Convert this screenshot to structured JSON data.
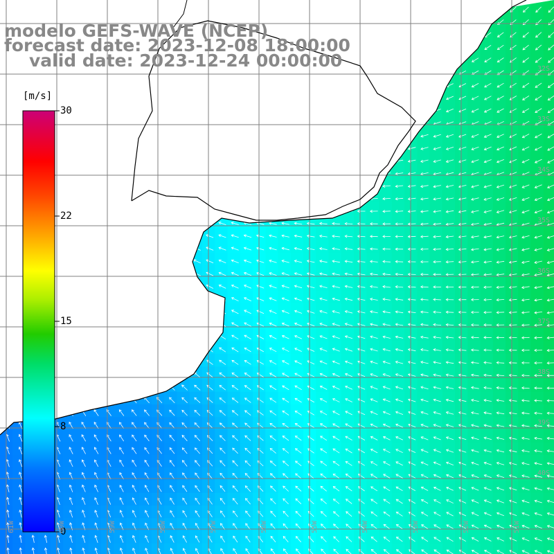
{
  "title": {
    "line1": "modelo GEFS-WAVE (NCEP)",
    "line2": "forecast date: 2023-12-08 18:00:00",
    "line3": "valid date: 2023-12-24 00:00:00"
  },
  "colorbar": {
    "unit": "[m/s]",
    "ticks": [
      "30",
      "22",
      "15",
      "8",
      "0"
    ],
    "min": 0,
    "max": 30
  },
  "grid": {
    "lat_labels": [
      "32S",
      "33S",
      "34S",
      "35S",
      "36S",
      "37S",
      "38S",
      "39S",
      "40S"
    ],
    "lon_labels": [
      "61W",
      "60W",
      "59W",
      "58W",
      "57W",
      "56W",
      "55W",
      "54W",
      "53W",
      "52W",
      "51W"
    ]
  },
  "field": {
    "variable": "wind speed",
    "lat_range": [
      31,
      41
    ],
    "lon_range": [
      62,
      51
    ]
  },
  "colors": {
    "land": "#ffffff",
    "grid": "#7f7f7f",
    "coast": "#000000",
    "vector": "#ffffff",
    "title": "#888888"
  }
}
